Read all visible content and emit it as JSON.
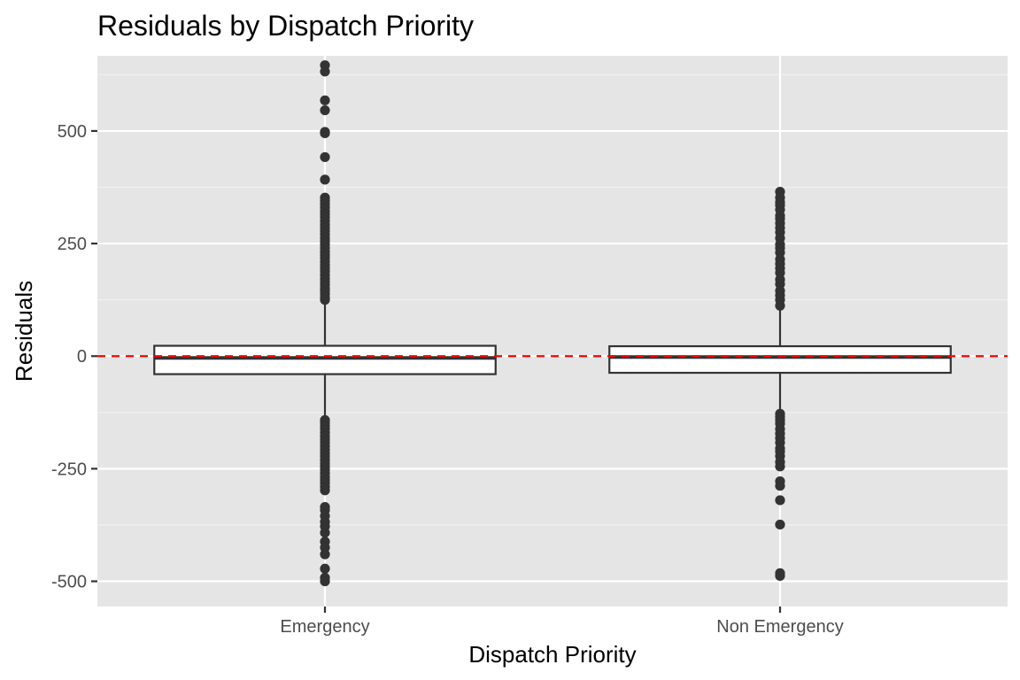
{
  "chart_data": {
    "type": "boxplot",
    "title": "Residuals by Dispatch Priority",
    "xlabel": "Dispatch Priority",
    "ylabel": "Residuals",
    "categories": [
      "Emergency",
      "Non Emergency"
    ],
    "ylim": [
      -556,
      667
    ],
    "yticks": [
      -500,
      -250,
      0,
      250,
      500
    ],
    "ytick_labels": [
      "-500",
      "-250",
      "0",
      "250",
      "500"
    ],
    "reference_line": {
      "y": 0,
      "style": "dashed",
      "color": "#ff0000"
    },
    "panel_background": "#e5e5e5",
    "grid": true,
    "boxes": [
      {
        "category": "Emergency",
        "q1": -40,
        "median": -4,
        "q3": 23,
        "whisker_low": -138,
        "whisker_high": 122,
        "outliers": [
          646,
          632,
          568,
          546,
          498,
          495,
          442,
          392,
          352,
          345,
          338,
          330,
          322,
          315,
          308,
          300,
          292,
          285,
          278,
          270,
          262,
          255,
          248,
          240,
          232,
          225,
          218,
          210,
          202,
          195,
          188,
          180,
          172,
          165,
          158,
          150,
          145,
          138,
          130,
          125,
          -142,
          -148,
          -155,
          -162,
          -170,
          -178,
          -185,
          -192,
          -200,
          -208,
          -215,
          -222,
          -230,
          -238,
          -245,
          -252,
          -260,
          -268,
          -275,
          -282,
          -290,
          -298,
          -335,
          -342,
          -355,
          -368,
          -378,
          -392,
          -412,
          -425,
          -440,
          -472,
          -492,
          -500
        ]
      },
      {
        "category": "Non Emergency",
        "q1": -37,
        "median": -2,
        "q3": 22,
        "whisker_low": -125,
        "whisker_high": 108,
        "outliers": [
          365,
          352,
          342,
          335,
          325,
          312,
          305,
          295,
          285,
          275,
          262,
          248,
          240,
          230,
          215,
          205,
          195,
          185,
          170,
          160,
          145,
          135,
          125,
          112,
          -128,
          -135,
          -142,
          -150,
          -162,
          -172,
          -182,
          -192,
          -205,
          -212,
          -222,
          -235,
          -245,
          -278,
          -288,
          -320,
          -374,
          -482,
          -488
        ]
      }
    ]
  }
}
